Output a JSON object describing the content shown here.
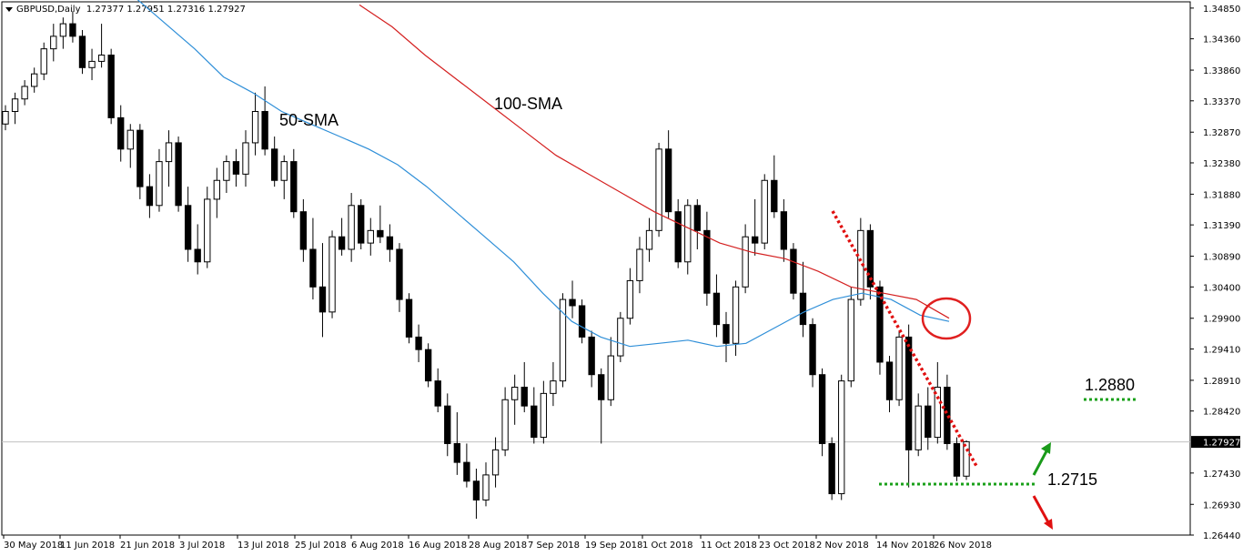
{
  "header": {
    "symbol": "GBPUSD,Daily",
    "ohlc": "1.27377 1.27951 1.27316 1.27927"
  },
  "colors": {
    "sma50": "#2f8fd8",
    "sma100": "#d42020",
    "trendline": "#e01010",
    "support": "#1aa01a",
    "up_arrow": "#1a9a1a",
    "down_arrow": "#e01010",
    "circle": "#e02020",
    "candle_up": "#ffffff",
    "candle_down": "#000000"
  },
  "chart_data": {
    "type": "candlestick",
    "title": "",
    "ylim": [
      1.2644,
      1.3495
    ],
    "y_ticks": [
      "1.34850",
      "1.34360",
      "1.33860",
      "1.33370",
      "1.32870",
      "1.32380",
      "1.31880",
      "1.31390",
      "1.30890",
      "1.30400",
      "1.29900",
      "1.29410",
      "1.28910",
      "1.28420",
      "1.27430",
      "1.26930",
      "1.26440"
    ],
    "x_ticks": [
      "30 May 2018",
      "11 Jun 2018",
      "21 Jun 2018",
      "3 Jul 2018",
      "13 Jul 2018",
      "25 Jul 2018",
      "6 Aug 2018",
      "16 Aug 2018",
      "28 Aug 2018",
      "7 Sep 2018",
      "19 Sep 2018",
      "1 Oct 2018",
      "11 Oct 2018",
      "23 Oct 2018",
      "2 Nov 2018",
      "14 Nov 2018",
      "26 Nov 2018"
    ],
    "current_price": "1.27927",
    "annotations": {
      "sma50_label": "50-SMA",
      "sma100_label": "100-SMA",
      "resistance_label": "1.2880",
      "support_label": "1.2715"
    },
    "sma50": [
      1.35,
      1.346,
      1.342,
      1.3375,
      1.335,
      1.332,
      1.33,
      1.328,
      1.326,
      1.3235,
      1.32,
      1.316,
      1.312,
      1.308,
      1.303,
      1.2985,
      1.296,
      1.2945,
      1.295,
      1.2955,
      1.2945,
      1.295,
      1.2975,
      1.3,
      1.302,
      1.303,
      1.302,
      1.2995,
      1.2985
    ],
    "sma100": [
      1.349,
      1.3455,
      1.341,
      1.337,
      1.333,
      1.329,
      1.325,
      1.322,
      1.319,
      1.316,
      1.3135,
      1.311,
      1.3095,
      1.3085,
      1.3065,
      1.304,
      1.303,
      1.302,
      1.299
    ],
    "candles": [
      [
        1.33,
        1.333,
        1.329,
        1.332
      ],
      [
        1.332,
        1.335,
        1.33,
        1.334
      ],
      [
        1.334,
        1.337,
        1.333,
        1.336
      ],
      [
        1.336,
        1.339,
        1.335,
        1.338
      ],
      [
        1.338,
        1.343,
        1.337,
        1.342
      ],
      [
        1.342,
        1.346,
        1.34,
        1.344
      ],
      [
        1.344,
        1.347,
        1.342,
        1.346
      ],
      [
        1.346,
        1.348,
        1.343,
        1.344
      ],
      [
        1.344,
        1.345,
        1.338,
        1.339
      ],
      [
        1.339,
        1.342,
        1.337,
        1.34
      ],
      [
        1.34,
        1.346,
        1.339,
        1.341
      ],
      [
        1.341,
        1.342,
        1.33,
        1.331
      ],
      [
        1.331,
        1.333,
        1.324,
        1.326
      ],
      [
        1.326,
        1.33,
        1.323,
        1.329
      ],
      [
        1.329,
        1.33,
        1.318,
        1.32
      ],
      [
        1.32,
        1.322,
        1.315,
        1.317
      ],
      [
        1.317,
        1.326,
        1.316,
        1.324
      ],
      [
        1.324,
        1.329,
        1.32,
        1.327
      ],
      [
        1.327,
        1.328,
        1.316,
        1.317
      ],
      [
        1.317,
        1.32,
        1.308,
        1.31
      ],
      [
        1.31,
        1.314,
        1.306,
        1.308
      ],
      [
        1.308,
        1.32,
        1.307,
        1.318
      ],
      [
        1.318,
        1.323,
        1.315,
        1.321
      ],
      [
        1.321,
        1.325,
        1.319,
        1.324
      ],
      [
        1.324,
        1.326,
        1.32,
        1.322
      ],
      [
        1.322,
        1.329,
        1.32,
        1.327
      ],
      [
        1.327,
        1.335,
        1.325,
        1.332
      ],
      [
        1.332,
        1.336,
        1.325,
        1.326
      ],
      [
        1.326,
        1.328,
        1.32,
        1.321
      ],
      [
        1.321,
        1.325,
        1.318,
        1.324
      ],
      [
        1.324,
        1.326,
        1.315,
        1.316
      ],
      [
        1.316,
        1.318,
        1.308,
        1.31
      ],
      [
        1.31,
        1.315,
        1.302,
        1.304
      ],
      [
        1.304,
        1.311,
        1.296,
        1.3
      ],
      [
        1.3,
        1.313,
        1.299,
        1.312
      ],
      [
        1.312,
        1.315,
        1.309,
        1.31
      ],
      [
        1.31,
        1.319,
        1.308,
        1.317
      ],
      [
        1.317,
        1.318,
        1.31,
        1.311
      ],
      [
        1.311,
        1.315,
        1.309,
        1.313
      ],
      [
        1.313,
        1.317,
        1.311,
        1.312
      ],
      [
        1.312,
        1.314,
        1.308,
        1.31
      ],
      [
        1.31,
        1.311,
        1.3,
        1.302
      ],
      [
        1.302,
        1.303,
        1.295,
        1.296
      ],
      [
        1.296,
        1.298,
        1.292,
        1.294
      ],
      [
        1.294,
        1.295,
        1.288,
        1.289
      ],
      [
        1.289,
        1.291,
        1.284,
        1.285
      ],
      [
        1.285,
        1.287,
        1.277,
        1.279
      ],
      [
        1.279,
        1.284,
        1.274,
        1.276
      ],
      [
        1.276,
        1.279,
        1.272,
        1.273
      ],
      [
        1.273,
        1.275,
        1.267,
        1.27
      ],
      [
        1.27,
        1.276,
        1.269,
        1.274
      ],
      [
        1.274,
        1.28,
        1.272,
        1.278
      ],
      [
        1.278,
        1.288,
        1.277,
        1.286
      ],
      [
        1.286,
        1.29,
        1.282,
        1.288
      ],
      [
        1.288,
        1.292,
        1.284,
        1.285
      ],
      [
        1.285,
        1.288,
        1.279,
        1.28
      ],
      [
        1.28,
        1.289,
        1.279,
        1.287
      ],
      [
        1.287,
        1.292,
        1.285,
        1.289
      ],
      [
        1.289,
        1.303,
        1.288,
        1.302
      ],
      [
        1.302,
        1.305,
        1.299,
        1.301
      ],
      [
        1.301,
        1.302,
        1.295,
        1.296
      ],
      [
        1.296,
        1.297,
        1.288,
        1.29
      ],
      [
        1.29,
        1.291,
        1.279,
        1.286
      ],
      [
        1.286,
        1.296,
        1.285,
        1.293
      ],
      [
        1.293,
        1.3,
        1.292,
        1.299
      ],
      [
        1.299,
        1.307,
        1.298,
        1.305
      ],
      [
        1.305,
        1.312,
        1.303,
        1.31
      ],
      [
        1.31,
        1.315,
        1.308,
        1.313
      ],
      [
        1.313,
        1.327,
        1.312,
        1.326
      ],
      [
        1.326,
        1.329,
        1.315,
        1.316
      ],
      [
        1.316,
        1.318,
        1.307,
        1.308
      ],
      [
        1.308,
        1.318,
        1.306,
        1.317
      ],
      [
        1.317,
        1.318,
        1.31,
        1.313
      ],
      [
        1.313,
        1.316,
        1.301,
        1.303
      ],
      [
        1.303,
        1.306,
        1.296,
        1.298
      ],
      [
        1.298,
        1.3,
        1.292,
        1.295
      ],
      [
        1.295,
        1.305,
        1.293,
        1.304
      ],
      [
        1.304,
        1.314,
        1.303,
        1.312
      ],
      [
        1.312,
        1.318,
        1.309,
        1.311
      ],
      [
        1.311,
        1.322,
        1.31,
        1.321
      ],
      [
        1.321,
        1.325,
        1.315,
        1.316
      ],
      [
        1.316,
        1.318,
        1.308,
        1.31
      ],
      [
        1.31,
        1.311,
        1.302,
        1.303
      ],
      [
        1.303,
        1.308,
        1.296,
        1.298
      ],
      [
        1.298,
        1.299,
        1.288,
        1.29
      ],
      [
        1.29,
        1.291,
        1.277,
        1.279
      ],
      [
        1.279,
        1.28,
        1.27,
        1.271
      ],
      [
        1.271,
        1.29,
        1.27,
        1.289
      ],
      [
        1.289,
        1.304,
        1.288,
        1.302
      ],
      [
        1.302,
        1.315,
        1.301,
        1.313
      ],
      [
        1.313,
        1.314,
        1.302,
        1.304
      ],
      [
        1.304,
        1.305,
        1.29,
        1.292
      ],
      [
        1.292,
        1.293,
        1.284,
        1.286
      ],
      [
        1.286,
        1.297,
        1.285,
        1.296
      ],
      [
        1.296,
        1.298,
        1.272,
        1.278
      ],
      [
        1.278,
        1.287,
        1.277,
        1.285
      ],
      [
        1.285,
        1.288,
        1.278,
        1.28
      ],
      [
        1.28,
        1.292,
        1.279,
        1.288
      ],
      [
        1.288,
        1.29,
        1.278,
        1.279
      ],
      [
        1.279,
        1.28,
        1.273,
        1.2738
      ],
      [
        1.2738,
        1.2795,
        1.2732,
        1.2793
      ]
    ]
  }
}
